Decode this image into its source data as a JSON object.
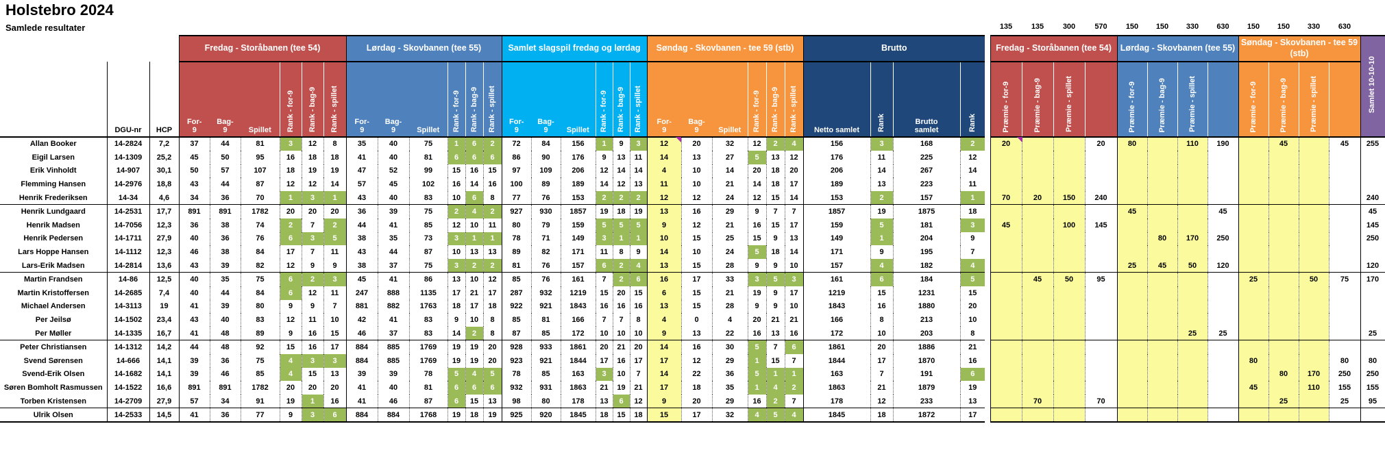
{
  "title": "Holstebro 2024",
  "subtitle": "Samlede resultater",
  "colors": {
    "fredag_red": "#C0504D",
    "lordag_blue": "#4F81BD",
    "samlet_cyan": "#00B0F0",
    "sondag_orange": "#F7943E",
    "brutto_navy": "#1F4779",
    "samlet_purple": "#8064A2",
    "rank_green": "#9BBB59",
    "premie_yellow": "#FBFB9D",
    "marker_purple": "#AB2BAB"
  },
  "groups": {
    "fredag": "Fredag - Storåbanen (tee 54)",
    "lordag": "Lørdag - Skovbanen (tee 55)",
    "samlet": "Samlet slagspil fredag og lørdag",
    "sondag": "Søndag - Skovbanen - tee 59 (stb)",
    "brutto": "Brutto",
    "premie_fredag": "Fredag - Storåbanen (tee 54)",
    "premie_lordag": "Lørdag - Skovbanen (tee 55)",
    "premie_sondag": "Søndag - Skovbanen - tee 59 (stb)"
  },
  "labels": {
    "dgu": "DGU-nr",
    "hcp": "HCP",
    "for9_a": "For-",
    "bag9_a": "Bag-",
    "nine": "9",
    "spillet": "Spillet",
    "rank_for9": "Rank - for-9",
    "rank_bag9": "Rank - bag-9",
    "rank_spillet": "Rank - spillet",
    "netto_samlet": "Netto samlet",
    "rank": "Rank",
    "brutto_a": "Brutto",
    "brutto_b": "samlet",
    "premie_for9": "Præmie - for-9",
    "premie_bag9": "Præmie - bag-9",
    "premie_spillet": "Præmie - spillet",
    "samlet_101010": "Samlet 10-10-10"
  },
  "prize_row": [
    "135",
    "135",
    "300",
    "570",
    "150",
    "150",
    "330",
    "630",
    "150",
    "150",
    "330",
    "630"
  ],
  "players": [
    {
      "name": "Allan Booker",
      "dgu": "14-2824",
      "hcp": "7,2",
      "f": [
        37,
        44,
        81,
        3,
        12,
        8
      ],
      "l": [
        35,
        40,
        75,
        1,
        6,
        2
      ],
      "s": [
        72,
        84,
        156,
        1,
        9,
        3
      ],
      "so": [
        12,
        20,
        32,
        12,
        2,
        4
      ],
      "b": [
        156,
        3,
        168,
        2
      ],
      "pf": [
        "20",
        "",
        "",
        "20"
      ],
      "pl": [
        "80",
        "",
        "110",
        "190"
      ],
      "ps": [
        "",
        "45",
        "",
        "45"
      ],
      "t": "255"
    },
    {
      "name": "Eigil Larsen",
      "dgu": "14-1309",
      "hcp": "25,2",
      "f": [
        45,
        50,
        95,
        16,
        18,
        18
      ],
      "l": [
        41,
        40,
        81,
        6,
        6,
        6
      ],
      "s": [
        86,
        90,
        176,
        9,
        13,
        11
      ],
      "so": [
        14,
        13,
        27,
        5,
        13,
        12
      ],
      "b": [
        176,
        11,
        225,
        12
      ],
      "pf": [
        "",
        "",
        "",
        ""
      ],
      "pl": [
        "",
        "",
        "",
        ""
      ],
      "ps": [
        "",
        "",
        "",
        ""
      ],
      "t": ""
    },
    {
      "name": "Erik Vinholdt",
      "dgu": "14-907",
      "hcp": "30,1",
      "f": [
        50,
        57,
        107,
        18,
        19,
        19
      ],
      "l": [
        47,
        52,
        99,
        15,
        16,
        15
      ],
      "s": [
        97,
        109,
        206,
        12,
        14,
        14
      ],
      "so": [
        4,
        10,
        14,
        20,
        18,
        20
      ],
      "b": [
        206,
        14,
        267,
        14
      ],
      "pf": [
        "",
        "",
        "",
        ""
      ],
      "pl": [
        "",
        "",
        "",
        ""
      ],
      "ps": [
        "",
        "",
        "",
        ""
      ],
      "t": ""
    },
    {
      "name": "Flemming Hansen",
      "dgu": "14-2976",
      "hcp": "18,8",
      "f": [
        43,
        44,
        87,
        12,
        12,
        14
      ],
      "l": [
        57,
        45,
        102,
        16,
        14,
        16
      ],
      "s": [
        100,
        89,
        189,
        14,
        12,
        13
      ],
      "so": [
        11,
        10,
        21,
        14,
        18,
        17
      ],
      "b": [
        189,
        13,
        223,
        11
      ],
      "pf": [
        "",
        "",
        "",
        ""
      ],
      "pl": [
        "",
        "",
        "",
        ""
      ],
      "ps": [
        "",
        "",
        "",
        ""
      ],
      "t": ""
    },
    {
      "name": "Henrik Frederiksen",
      "dgu": "14-34",
      "hcp": "4,6",
      "f": [
        34,
        36,
        70,
        1,
        3,
        1
      ],
      "l": [
        43,
        40,
        83,
        10,
        6,
        8
      ],
      "s": [
        77,
        76,
        153,
        2,
        2,
        2
      ],
      "so": [
        12,
        12,
        24,
        12,
        15,
        14
      ],
      "b": [
        153,
        2,
        157,
        1
      ],
      "pf": [
        "70",
        "20",
        "150",
        "240"
      ],
      "pl": [
        "",
        "",
        "",
        ""
      ],
      "ps": [
        "",
        "",
        "",
        ""
      ],
      "t": "240"
    },
    {
      "name": "Henrik Lundgaard",
      "dgu": "14-2531",
      "hcp": "17,7",
      "f": [
        891,
        891,
        1782,
        20,
        20,
        20
      ],
      "l": [
        36,
        39,
        75,
        2,
        4,
        2
      ],
      "s": [
        927,
        930,
        1857,
        19,
        18,
        19
      ],
      "so": [
        13,
        16,
        29,
        9,
        7,
        7
      ],
      "b": [
        1857,
        19,
        1875,
        18
      ],
      "pf": [
        "",
        "",
        "",
        ""
      ],
      "pl": [
        "45",
        "",
        "",
        "45"
      ],
      "ps": [
        "",
        "",
        "",
        ""
      ],
      "t": "45"
    },
    {
      "name": "Henrik Madsen",
      "dgu": "14-7056",
      "hcp": "12,3",
      "f": [
        36,
        38,
        74,
        2,
        7,
        2
      ],
      "l": [
        44,
        41,
        85,
        12,
        10,
        11
      ],
      "s": [
        80,
        79,
        159,
        5,
        5,
        5
      ],
      "so": [
        9,
        12,
        21,
        16,
        15,
        17
      ],
      "b": [
        159,
        5,
        181,
        3
      ],
      "pf": [
        "45",
        "",
        "100",
        "145"
      ],
      "pl": [
        "",
        "",
        "",
        ""
      ],
      "ps": [
        "",
        "",
        "",
        ""
      ],
      "t": "145"
    },
    {
      "name": "Henrik Pedersen",
      "dgu": "14-1711",
      "hcp": "27,9",
      "f": [
        40,
        36,
        76,
        6,
        3,
        5
      ],
      "l": [
        38,
        35,
        73,
        3,
        1,
        1
      ],
      "s": [
        78,
        71,
        149,
        3,
        1,
        1
      ],
      "so": [
        10,
        15,
        25,
        15,
        9,
        13
      ],
      "b": [
        149,
        1,
        204,
        9
      ],
      "pf": [
        "",
        "",
        "",
        ""
      ],
      "pl": [
        "",
        "80",
        "170",
        "250"
      ],
      "ps": [
        "",
        "",
        "",
        ""
      ],
      "t": "250"
    },
    {
      "name": "Lars Hoppe Hansen",
      "dgu": "14-1112",
      "hcp": "12,3",
      "f": [
        46,
        38,
        84,
        17,
        7,
        11
      ],
      "l": [
        43,
        44,
        87,
        10,
        13,
        13
      ],
      "s": [
        89,
        82,
        171,
        11,
        8,
        9
      ],
      "so": [
        14,
        10,
        24,
        5,
        18,
        14
      ],
      "b": [
        171,
        9,
        195,
        7
      ],
      "pf": [
        "",
        "",
        "",
        ""
      ],
      "pl": [
        "",
        "",
        "",
        ""
      ],
      "ps": [
        "",
        "",
        "",
        ""
      ],
      "t": ""
    },
    {
      "name": "Lars-Erik Madsen",
      "dgu": "14-2814",
      "hcp": "13,6",
      "f": [
        43,
        39,
        82,
        12,
        9,
        9
      ],
      "l": [
        38,
        37,
        75,
        3,
        2,
        2
      ],
      "s": [
        81,
        76,
        157,
        6,
        2,
        4
      ],
      "so": [
        13,
        15,
        28,
        9,
        9,
        10
      ],
      "b": [
        157,
        4,
        182,
        4
      ],
      "pf": [
        "",
        "",
        "",
        ""
      ],
      "pl": [
        "25",
        "45",
        "50",
        "120"
      ],
      "ps": [
        "",
        "",
        "",
        ""
      ],
      "t": "120"
    },
    {
      "name": "Martin Frandsen",
      "dgu": "14-86",
      "hcp": "12,5",
      "f": [
        40,
        35,
        75,
        6,
        2,
        3
      ],
      "l": [
        45,
        41,
        86,
        13,
        10,
        12
      ],
      "s": [
        85,
        76,
        161,
        7,
        2,
        6
      ],
      "so": [
        16,
        17,
        33,
        3,
        5,
        3
      ],
      "b": [
        161,
        6,
        184,
        5
      ],
      "pf": [
        "",
        "45",
        "50",
        "95"
      ],
      "pl": [
        "",
        "",
        "",
        ""
      ],
      "ps": [
        "25",
        "",
        "50",
        "75"
      ],
      "t": "170"
    },
    {
      "name": "Martin Kristoffersen",
      "dgu": "14-2685",
      "hcp": "7,4",
      "f": [
        40,
        44,
        84,
        6,
        12,
        11
      ],
      "l": [
        247,
        888,
        1135,
        17,
        21,
        17
      ],
      "s": [
        287,
        932,
        1219,
        15,
        20,
        15
      ],
      "so": [
        6,
        15,
        21,
        19,
        9,
        17
      ],
      "b": [
        1219,
        15,
        1231,
        15
      ],
      "pf": [
        "",
        "",
        "",
        ""
      ],
      "pl": [
        "",
        "",
        "",
        ""
      ],
      "ps": [
        "",
        "",
        "",
        ""
      ],
      "t": ""
    },
    {
      "name": "Michael Andersen",
      "dgu": "14-3113",
      "hcp": "19",
      "f": [
        41,
        39,
        80,
        9,
        9,
        7
      ],
      "l": [
        881,
        882,
        1763,
        18,
        17,
        18
      ],
      "s": [
        922,
        921,
        1843,
        16,
        16,
        16
      ],
      "so": [
        13,
        15,
        28,
        9,
        9,
        10
      ],
      "b": [
        1843,
        16,
        1880,
        20
      ],
      "pf": [
        "",
        "",
        "",
        ""
      ],
      "pl": [
        "",
        "",
        "",
        ""
      ],
      "ps": [
        "",
        "",
        "",
        ""
      ],
      "t": ""
    },
    {
      "name": "Per Jeilsø",
      "dgu": "14-1502",
      "hcp": "23,4",
      "f": [
        43,
        40,
        83,
        12,
        11,
        10
      ],
      "l": [
        42,
        41,
        83,
        9,
        10,
        8
      ],
      "s": [
        85,
        81,
        166,
        7,
        7,
        8
      ],
      "so": [
        4,
        0,
        4,
        20,
        21,
        21
      ],
      "b": [
        166,
        8,
        213,
        10
      ],
      "pf": [
        "",
        "",
        "",
        ""
      ],
      "pl": [
        "",
        "",
        "",
        ""
      ],
      "ps": [
        "",
        "",
        "",
        ""
      ],
      "t": ""
    },
    {
      "name": "Per Møller",
      "dgu": "14-1335",
      "hcp": "16,7",
      "f": [
        41,
        48,
        89,
        9,
        16,
        15
      ],
      "l": [
        46,
        37,
        83,
        14,
        2,
        8
      ],
      "s": [
        87,
        85,
        172,
        10,
        10,
        10
      ],
      "so": [
        9,
        13,
        22,
        16,
        13,
        16
      ],
      "b": [
        172,
        10,
        203,
        8
      ],
      "pf": [
        "",
        "",
        "",
        ""
      ],
      "pl": [
        "",
        "",
        "25",
        "25"
      ],
      "ps": [
        "",
        "",
        "",
        ""
      ],
      "t": "25"
    },
    {
      "name": "Peter Christiansen",
      "dgu": "14-1312",
      "hcp": "14,2",
      "f": [
        44,
        48,
        92,
        15,
        16,
        17
      ],
      "l": [
        884,
        885,
        1769,
        19,
        19,
        20
      ],
      "s": [
        928,
        933,
        1861,
        20,
        21,
        20
      ],
      "so": [
        14,
        16,
        30,
        5,
        7,
        6
      ],
      "b": [
        1861,
        20,
        1886,
        21
      ],
      "pf": [
        "",
        "",
        "",
        ""
      ],
      "pl": [
        "",
        "",
        "",
        ""
      ],
      "ps": [
        "",
        "",
        "",
        ""
      ],
      "t": ""
    },
    {
      "name": "Svend Sørensen",
      "dgu": "14-666",
      "hcp": "14,1",
      "f": [
        39,
        36,
        75,
        4,
        3,
        3
      ],
      "l": [
        884,
        885,
        1769,
        19,
        19,
        20
      ],
      "s": [
        923,
        921,
        1844,
        17,
        16,
        17
      ],
      "so": [
        17,
        12,
        29,
        1,
        15,
        7
      ],
      "b": [
        1844,
        17,
        1870,
        16
      ],
      "pf": [
        "",
        "",
        "",
        ""
      ],
      "pl": [
        "",
        "",
        "",
        ""
      ],
      "ps": [
        "80",
        "",
        "",
        "80"
      ],
      "t": "80"
    },
    {
      "name": "Svend-Erik Olsen",
      "dgu": "14-1682",
      "hcp": "14,1",
      "f": [
        39,
        46,
        85,
        4,
        15,
        13
      ],
      "l": [
        39,
        39,
        78,
        5,
        4,
        5
      ],
      "s": [
        78,
        85,
        163,
        3,
        10,
        7
      ],
      "so": [
        14,
        22,
        36,
        5,
        1,
        1
      ],
      "b": [
        163,
        7,
        191,
        6
      ],
      "pf": [
        "",
        "",
        "",
        ""
      ],
      "pl": [
        "",
        "",
        "",
        ""
      ],
      "ps": [
        "",
        "80",
        "170",
        "250"
      ],
      "t": "250"
    },
    {
      "name": "Søren Bomholt Rasmussen",
      "dgu": "14-1522",
      "hcp": "16,6",
      "f": [
        891,
        891,
        1782,
        20,
        20,
        20
      ],
      "l": [
        41,
        40,
        81,
        6,
        6,
        6
      ],
      "s": [
        932,
        931,
        1863,
        21,
        19,
        21
      ],
      "so": [
        17,
        18,
        35,
        1,
        4,
        2
      ],
      "b": [
        1863,
        21,
        1879,
        19
      ],
      "pf": [
        "",
        "",
        "",
        ""
      ],
      "pl": [
        "",
        "",
        "",
        ""
      ],
      "ps": [
        "45",
        "",
        "110",
        "155"
      ],
      "t": "155"
    },
    {
      "name": "Torben Kristensen",
      "dgu": "14-2709",
      "hcp": "27,9",
      "f": [
        57,
        34,
        91,
        19,
        1,
        16
      ],
      "l": [
        41,
        46,
        87,
        6,
        15,
        13
      ],
      "s": [
        98,
        80,
        178,
        13,
        6,
        12
      ],
      "so": [
        9,
        20,
        29,
        16,
        2,
        7
      ],
      "b": [
        178,
        12,
        233,
        13
      ],
      "pf": [
        "",
        "70",
        "",
        "70"
      ],
      "pl": [
        "",
        "",
        "",
        ""
      ],
      "ps": [
        "",
        "25",
        "",
        "25"
      ],
      "t": "95"
    },
    {
      "name": "Ulrik Olsen",
      "dgu": "14-2533",
      "hcp": "14,5",
      "f": [
        41,
        36,
        77,
        9,
        3,
        6
      ],
      "l": [
        884,
        884,
        1768,
        19,
        18,
        19
      ],
      "s": [
        925,
        920,
        1845,
        18,
        15,
        18
      ],
      "so": [
        15,
        17,
        32,
        4,
        5,
        4
      ],
      "b": [
        1845,
        18,
        1872,
        17
      ],
      "pf": [
        "",
        "",
        "",
        ""
      ],
      "pl": [
        "",
        "",
        "",
        ""
      ],
      "ps": [
        "",
        "",
        "",
        ""
      ],
      "t": ""
    }
  ]
}
